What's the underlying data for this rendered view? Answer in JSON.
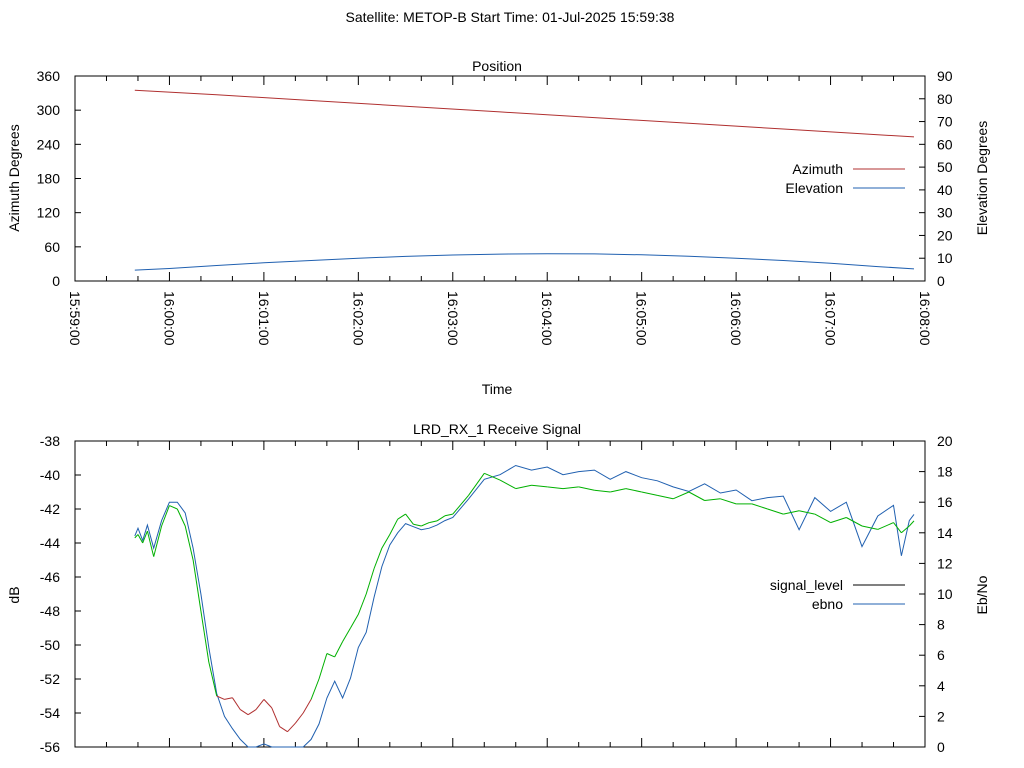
{
  "header": {
    "title": "Satellite: METOP-B    Start Time: 01-Jul-2025 15:59:38"
  },
  "chart_data": [
    {
      "type": "line",
      "title": "Position",
      "xlabel": "Time",
      "ylabel": "Azimuth Degrees",
      "y2label": "Elevation Degrees",
      "ylim": [
        0,
        360
      ],
      "y2lim": [
        0,
        90
      ],
      "y_ticks": [
        "0",
        "60",
        "120",
        "180",
        "240",
        "300",
        "360"
      ],
      "y2_ticks": [
        "0",
        "10",
        "20",
        "30",
        "40",
        "50",
        "60",
        "70",
        "80",
        "90"
      ],
      "x_tick_labels": [
        "15:59:00",
        "16:00:00",
        "16:01:00",
        "16:02:00",
        "16:03:00",
        "16:04:00",
        "16:05:00",
        "16:06:00",
        "16:07:00",
        "16:08:00"
      ],
      "legend_position": "right",
      "grid": false,
      "series": [
        {
          "name": "Azimuth",
          "axis": "left",
          "color": "#b03030",
          "x": [
            "15:59:38",
            "16:00:30",
            "16:01:30",
            "16:02:30",
            "16:03:30",
            "16:04:30",
            "16:05:30",
            "16:06:30",
            "16:07:30",
            "16:07:53"
          ],
          "y": [
            335,
            327,
            317,
            307,
            297,
            287,
            277,
            267,
            257,
            253
          ]
        },
        {
          "name": "Elevation",
          "axis": "right",
          "color": "#2060b0",
          "x": [
            "15:59:38",
            "16:00:00",
            "16:00:30",
            "16:01:00",
            "16:01:30",
            "16:02:00",
            "16:02:30",
            "16:03:00",
            "16:03:30",
            "16:04:00",
            "16:04:30",
            "16:05:00",
            "16:05:30",
            "16:06:00",
            "16:06:30",
            "16:07:00",
            "16:07:30",
            "16:07:53"
          ],
          "y": [
            4.8,
            5.5,
            6.8,
            8.0,
            9.0,
            10.0,
            10.8,
            11.4,
            11.8,
            12.0,
            11.9,
            11.5,
            10.9,
            10.0,
            9.0,
            7.8,
            6.3,
            5.3
          ]
        }
      ]
    },
    {
      "type": "line",
      "title": "LRD_RX_1 Receive Signal",
      "ylabel": "dB",
      "y2label": "Eb/No",
      "ylim": [
        -56,
        -38
      ],
      "y2lim": [
        0,
        20
      ],
      "y_ticks": [
        "-56",
        "-54",
        "-52",
        "-50",
        "-48",
        "-46",
        "-44",
        "-42",
        "-40",
        "-38"
      ],
      "y2_ticks": [
        "0",
        "2",
        "4",
        "6",
        "8",
        "10",
        "12",
        "14",
        "16",
        "18",
        "20"
      ],
      "legend_position": "right",
      "grid": false,
      "series": [
        {
          "name": "signal_level",
          "axis": "left",
          "color": "#000000",
          "line_colors": {
            "above": "#00b000",
            "below": "#b03030",
            "threshold": -53
          },
          "x": [
            "15:59:38",
            "15:59:40",
            "15:59:43",
            "15:59:46",
            "15:59:50",
            "15:59:55",
            "16:00:00",
            "16:00:05",
            "16:00:10",
            "16:00:15",
            "16:00:20",
            "16:00:25",
            "16:00:30",
            "16:00:35",
            "16:00:40",
            "16:00:45",
            "16:00:50",
            "16:00:55",
            "16:01:00",
            "16:01:05",
            "16:01:10",
            "16:01:15",
            "16:01:20",
            "16:01:25",
            "16:01:30",
            "16:01:35",
            "16:01:40",
            "16:01:45",
            "16:01:50",
            "16:01:55",
            "16:02:00",
            "16:02:05",
            "16:02:10",
            "16:02:15",
            "16:02:20",
            "16:02:25",
            "16:02:30",
            "16:02:35",
            "16:02:40",
            "16:02:45",
            "16:02:50",
            "16:02:55",
            "16:03:00",
            "16:03:10",
            "16:03:20",
            "16:03:30",
            "16:03:40",
            "16:03:50",
            "16:04:00",
            "16:04:10",
            "16:04:20",
            "16:04:30",
            "16:04:40",
            "16:04:50",
            "16:05:00",
            "16:05:10",
            "16:05:20",
            "16:05:30",
            "16:05:40",
            "16:05:50",
            "16:06:00",
            "16:06:10",
            "16:06:20",
            "16:06:30",
            "16:06:40",
            "16:06:50",
            "16:07:00",
            "16:07:10",
            "16:07:20",
            "16:07:30",
            "16:07:40",
            "16:07:45",
            "16:07:50",
            "16:07:53"
          ],
          "y": [
            -43.7,
            -43.5,
            -44.0,
            -43.3,
            -44.8,
            -43.0,
            -41.8,
            -42.0,
            -43.0,
            -45.0,
            -48.0,
            -51.0,
            -53.0,
            -53.2,
            -53.1,
            -53.8,
            -54.1,
            -53.8,
            -53.2,
            -53.7,
            -54.8,
            -55.1,
            -54.6,
            -54.0,
            -53.2,
            -52.0,
            -50.5,
            -50.7,
            -49.8,
            -49.0,
            -48.2,
            -47.0,
            -45.5,
            -44.3,
            -43.5,
            -42.6,
            -42.3,
            -42.9,
            -43.0,
            -42.8,
            -42.7,
            -42.4,
            -42.3,
            -41.2,
            -39.9,
            -40.3,
            -40.8,
            -40.6,
            -40.7,
            -40.8,
            -40.7,
            -40.9,
            -41.0,
            -40.8,
            -41.0,
            -41.2,
            -41.4,
            -41.0,
            -41.5,
            -41.4,
            -41.7,
            -41.7,
            -42.0,
            -42.3,
            -42.1,
            -42.3,
            -42.8,
            -42.5,
            -43.0,
            -43.2,
            -42.8,
            -43.4,
            -43.0,
            -42.7
          ]
        },
        {
          "name": "ebno",
          "axis": "right",
          "color": "#2060b0",
          "x": [
            "15:59:38",
            "15:59:40",
            "15:59:43",
            "15:59:46",
            "15:59:50",
            "15:59:55",
            "16:00:00",
            "16:00:05",
            "16:00:10",
            "16:00:15",
            "16:00:20",
            "16:00:25",
            "16:00:30",
            "16:00:35",
            "16:00:40",
            "16:00:45",
            "16:00:50",
            "16:00:55",
            "16:01:00",
            "16:01:05",
            "16:01:10",
            "16:01:15",
            "16:01:20",
            "16:01:25",
            "16:01:30",
            "16:01:35",
            "16:01:40",
            "16:01:45",
            "16:01:50",
            "16:01:55",
            "16:02:00",
            "16:02:05",
            "16:02:10",
            "16:02:15",
            "16:02:20",
            "16:02:25",
            "16:02:30",
            "16:02:35",
            "16:02:40",
            "16:02:45",
            "16:02:50",
            "16:02:55",
            "16:03:00",
            "16:03:10",
            "16:03:20",
            "16:03:30",
            "16:03:40",
            "16:03:50",
            "16:04:00",
            "16:04:10",
            "16:04:20",
            "16:04:30",
            "16:04:40",
            "16:04:50",
            "16:05:00",
            "16:05:10",
            "16:05:20",
            "16:05:30",
            "16:05:40",
            "16:05:50",
            "16:06:00",
            "16:06:10",
            "16:06:20",
            "16:06:30",
            "16:06:40",
            "16:06:50",
            "16:07:00",
            "16:07:10",
            "16:07:20",
            "16:07:30",
            "16:07:40",
            "16:07:45",
            "16:07:50",
            "16:07:53"
          ],
          "y": [
            13.8,
            14.3,
            13.5,
            14.5,
            13.0,
            14.8,
            16.0,
            16.0,
            15.3,
            13.0,
            10.0,
            6.5,
            3.5,
            2.0,
            1.2,
            0.5,
            0.0,
            0.0,
            0.2,
            0.0,
            0.0,
            0.0,
            0.0,
            0.0,
            0.5,
            1.5,
            3.2,
            4.3,
            3.2,
            4.5,
            6.5,
            7.5,
            9.8,
            11.8,
            13.2,
            14.0,
            14.6,
            14.4,
            14.2,
            14.3,
            14.5,
            14.8,
            15.0,
            16.2,
            17.5,
            17.8,
            18.4,
            18.1,
            18.3,
            17.8,
            18.0,
            18.1,
            17.5,
            18.0,
            17.6,
            17.4,
            17.0,
            16.7,
            17.2,
            16.6,
            16.8,
            16.1,
            16.3,
            16.4,
            14.2,
            16.3,
            15.4,
            16.0,
            13.1,
            15.1,
            15.8,
            12.5,
            14.8,
            15.2
          ]
        }
      ]
    }
  ],
  "legend": {
    "position_entries": [
      "Azimuth",
      "Elevation"
    ],
    "signal_entries": [
      "signal_level",
      "ebno"
    ]
  }
}
